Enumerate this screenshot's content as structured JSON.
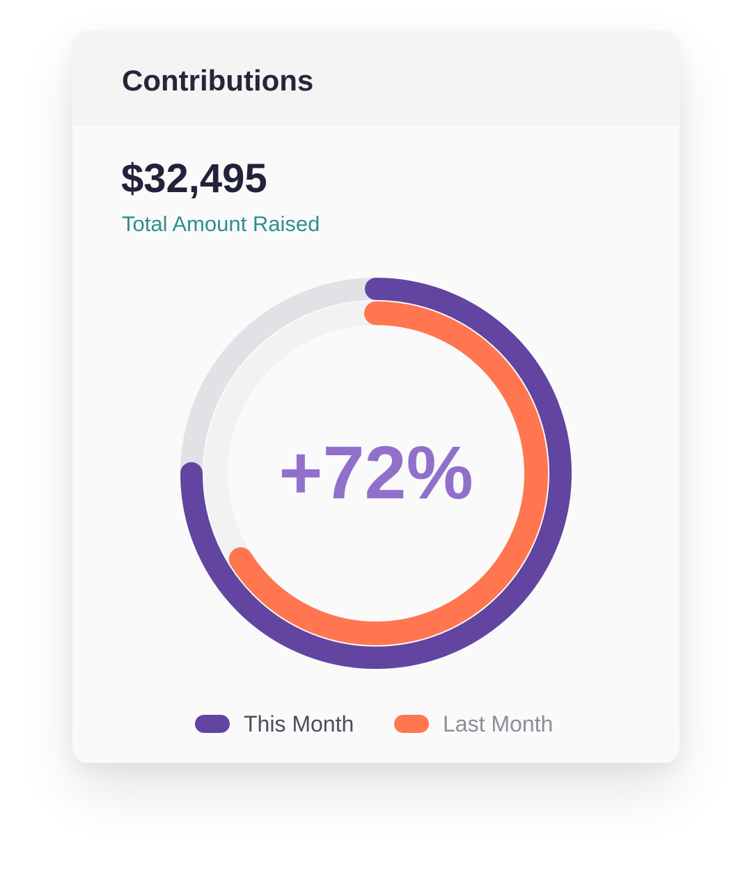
{
  "card": {
    "title": "Contributions",
    "amount": "$32,495",
    "amount_label": "Total Amount Raised"
  },
  "chart_data": {
    "type": "radial-progress",
    "center_label": "+72%",
    "series": [
      {
        "name": "This Month",
        "value": 0.75,
        "color": "#6145a1"
      },
      {
        "name": "Last Month",
        "value": 0.66,
        "color": "#ff7650"
      }
    ],
    "track_colors": [
      "#e2e1e6",
      "#f2f2f3"
    ]
  },
  "legend": {
    "items": [
      {
        "label": "This Month",
        "color": "#6145a1",
        "text_color": "#4c4c5c"
      },
      {
        "label": "Last Month",
        "color": "#ff7650",
        "text_color": "#8e8e99"
      }
    ]
  },
  "colors": {
    "title": "#262638",
    "amount": "#22223a",
    "amount_label": "#2f8f8c",
    "center_label": "#9170cc",
    "card_bg": "#fafafa",
    "header_bg": "#f4f4f5"
  }
}
